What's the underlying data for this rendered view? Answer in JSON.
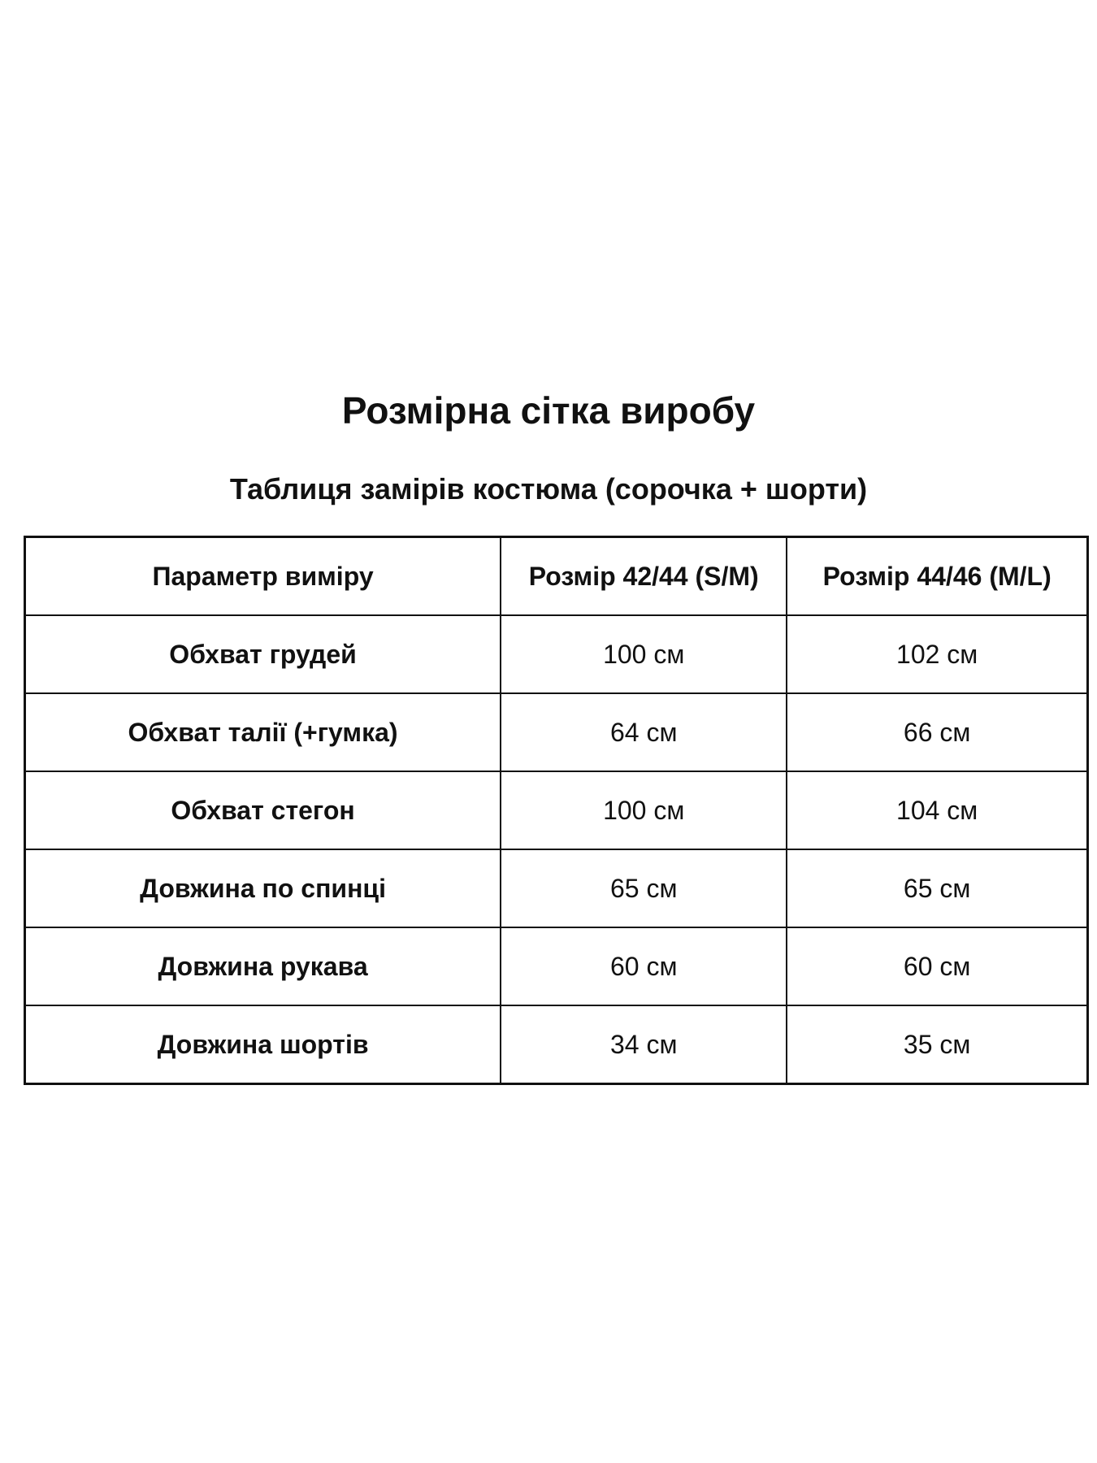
{
  "title": "Розмірна сітка виробу",
  "subtitle": "Таблиця замірів костюма (сорочка + шорти)",
  "table": {
    "headers": [
      "Параметр виміру",
      "Розмір 42/44 (S/M)",
      "Розмір 44/46 (M/L)"
    ],
    "rows": [
      [
        "Обхват грудей",
        "100 см",
        "102 см"
      ],
      [
        "Обхват талії (+гумка)",
        "64 см",
        "66 см"
      ],
      [
        "Обхват стегон",
        "100 см",
        "104 см"
      ],
      [
        "Довжина по спинці",
        "65 см",
        "65 см"
      ],
      [
        "Довжина рукава",
        "60 см",
        "60 см"
      ],
      [
        "Довжина шортів",
        "34 см",
        "35 см"
      ]
    ]
  }
}
